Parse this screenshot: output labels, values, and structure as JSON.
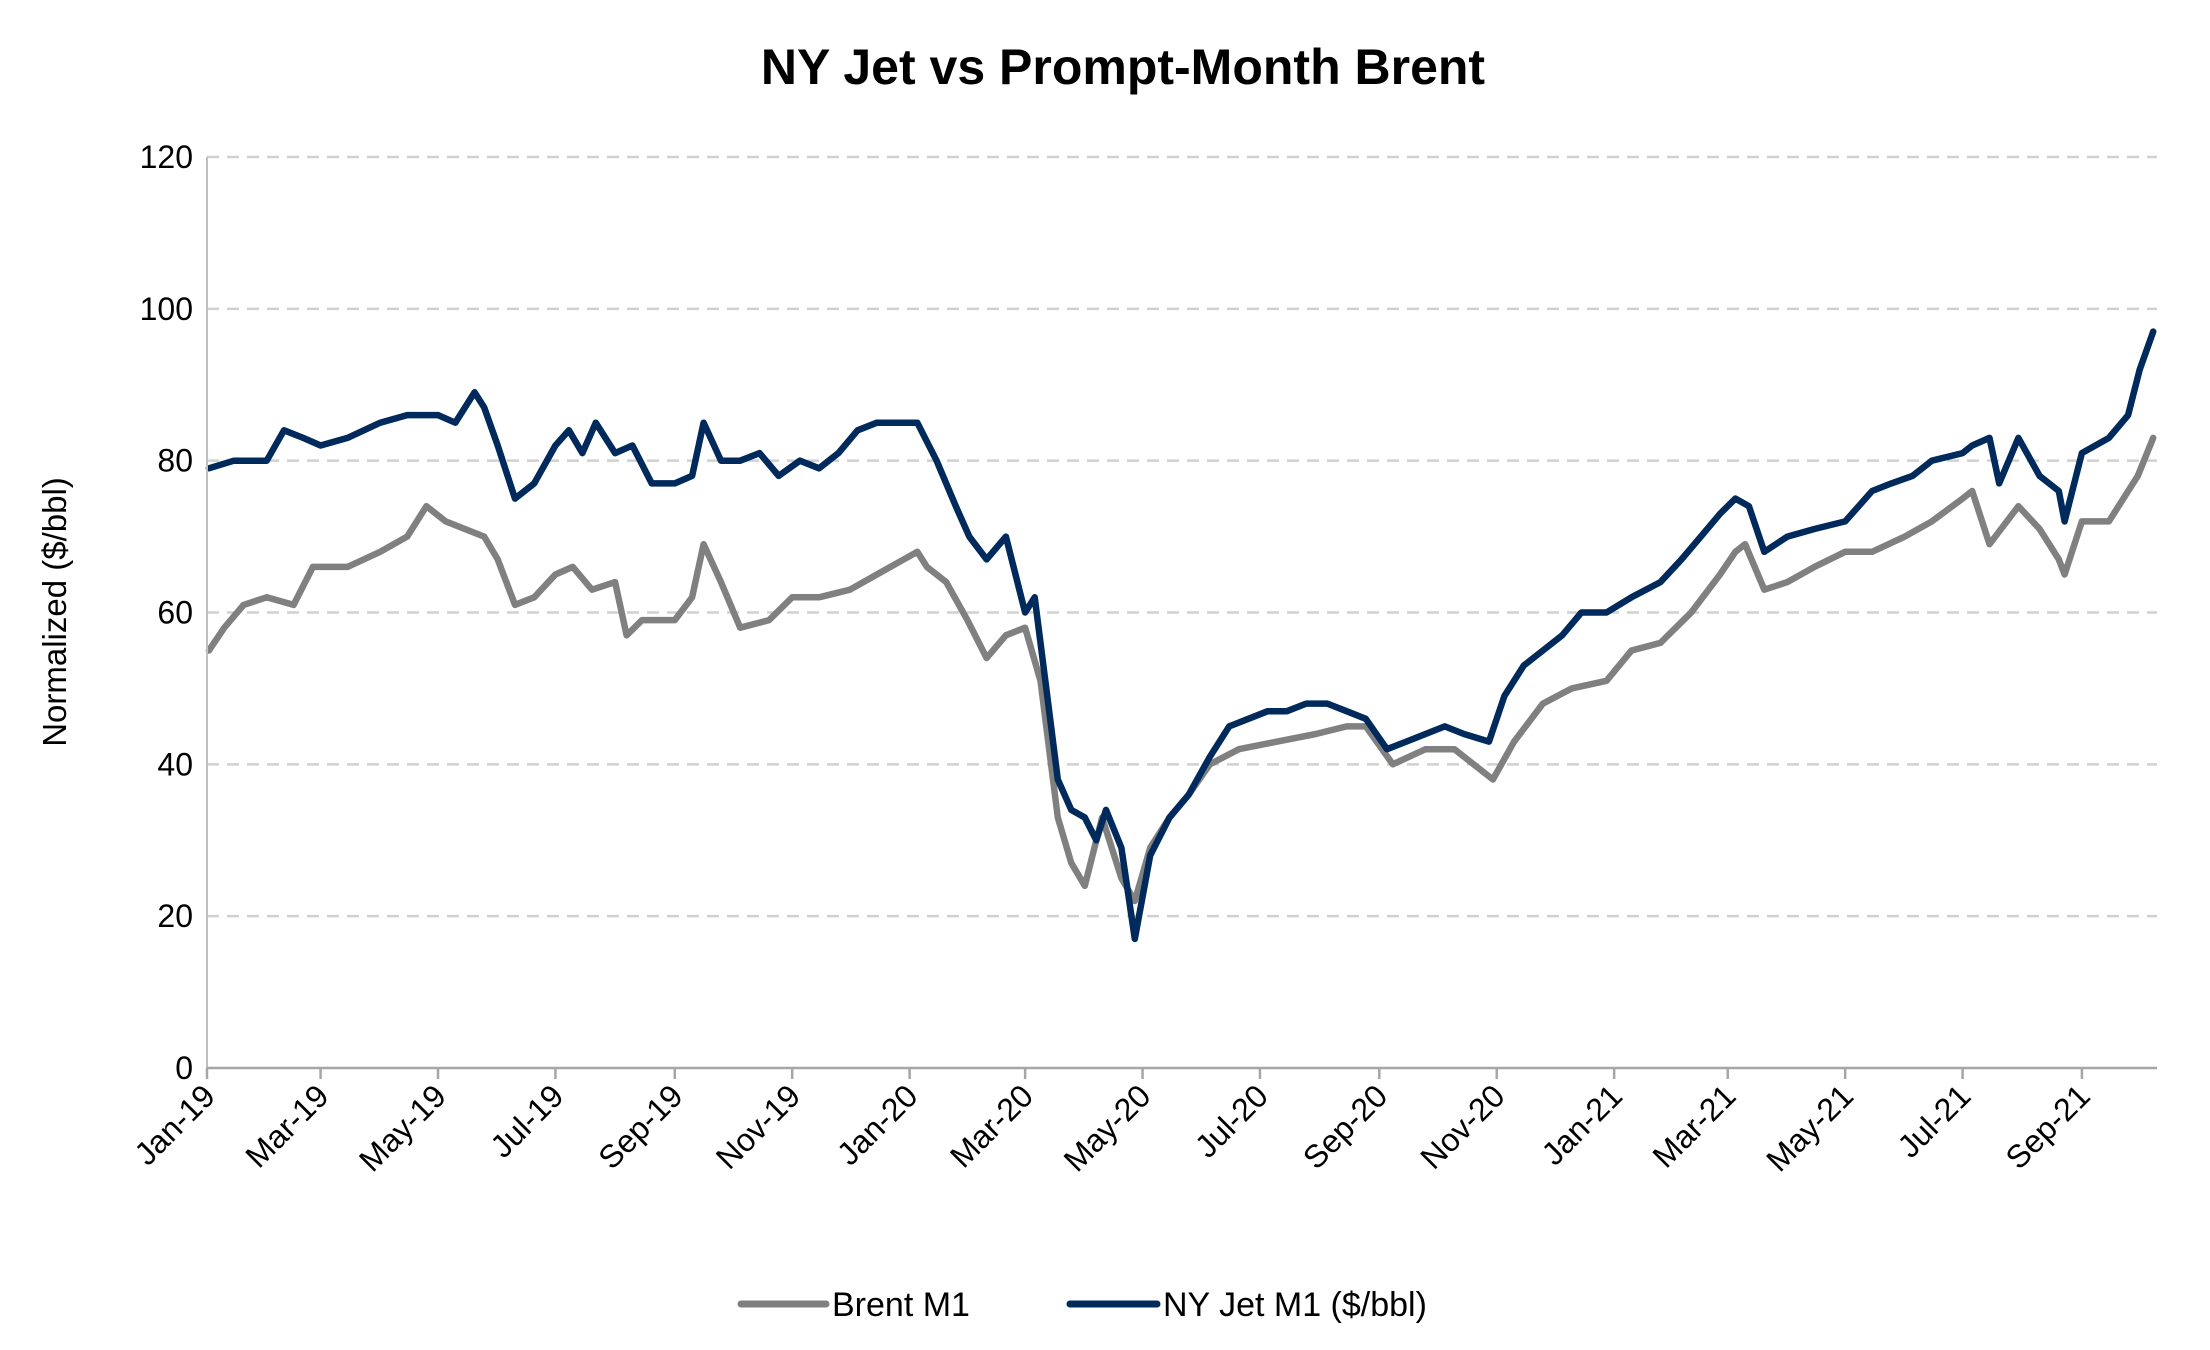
{
  "chart_data": {
    "type": "line",
    "title": "NY Jet vs Prompt-Month Brent",
    "xlabel": "",
    "ylabel": "Normalized ($/bbl)",
    "ylim": [
      0,
      120
    ],
    "yticks": [
      0,
      20,
      40,
      60,
      80,
      100,
      120
    ],
    "xlim": [
      "2019-01-01",
      "2021-10-10"
    ],
    "xticks": [
      {
        "date": "2019-01-01",
        "label": "Jan-19"
      },
      {
        "date": "2019-03-01",
        "label": "Mar-19"
      },
      {
        "date": "2019-05-01",
        "label": "May-19"
      },
      {
        "date": "2019-07-01",
        "label": "Jul-19"
      },
      {
        "date": "2019-09-01",
        "label": "Sep-19"
      },
      {
        "date": "2019-11-01",
        "label": "Nov-19"
      },
      {
        "date": "2020-01-01",
        "label": "Jan-20"
      },
      {
        "date": "2020-03-01",
        "label": "Mar-20"
      },
      {
        "date": "2020-05-01",
        "label": "May-20"
      },
      {
        "date": "2020-07-01",
        "label": "Jul-20"
      },
      {
        "date": "2020-09-01",
        "label": "Sep-20"
      },
      {
        "date": "2020-11-01",
        "label": "Nov-20"
      },
      {
        "date": "2021-01-01",
        "label": "Jan-21"
      },
      {
        "date": "2021-03-01",
        "label": "Mar-21"
      },
      {
        "date": "2021-05-01",
        "label": "May-21"
      },
      {
        "date": "2021-07-01",
        "label": "Jul-21"
      },
      {
        "date": "2021-09-01",
        "label": "Sep-21"
      }
    ],
    "grid": "horizontal dashed",
    "legend": "bottom",
    "series": [
      {
        "name": "Brent M1",
        "color": "#808080",
        "points": [
          [
            "2019-01-02",
            55
          ],
          [
            "2019-01-10",
            58
          ],
          [
            "2019-01-20",
            61
          ],
          [
            "2019-02-01",
            62
          ],
          [
            "2019-02-15",
            61
          ],
          [
            "2019-02-25",
            66
          ],
          [
            "2019-03-15",
            66
          ],
          [
            "2019-04-01",
            68
          ],
          [
            "2019-04-15",
            70
          ],
          [
            "2019-04-25",
            74
          ],
          [
            "2019-05-05",
            72
          ],
          [
            "2019-05-15",
            71
          ],
          [
            "2019-05-25",
            70
          ],
          [
            "2019-06-01",
            67
          ],
          [
            "2019-06-10",
            61
          ],
          [
            "2019-06-20",
            62
          ],
          [
            "2019-07-01",
            65
          ],
          [
            "2019-07-10",
            66
          ],
          [
            "2019-07-20",
            63
          ],
          [
            "2019-08-01",
            64
          ],
          [
            "2019-08-07",
            57
          ],
          [
            "2019-08-15",
            59
          ],
          [
            "2019-09-01",
            59
          ],
          [
            "2019-09-10",
            62
          ],
          [
            "2019-09-16",
            69
          ],
          [
            "2019-09-25",
            64
          ],
          [
            "2019-10-05",
            58
          ],
          [
            "2019-10-20",
            59
          ],
          [
            "2019-11-01",
            62
          ],
          [
            "2019-11-15",
            62
          ],
          [
            "2019-12-01",
            63
          ],
          [
            "2019-12-15",
            65
          ],
          [
            "2020-01-05",
            68
          ],
          [
            "2020-01-10",
            66
          ],
          [
            "2020-01-20",
            64
          ],
          [
            "2020-01-31",
            59
          ],
          [
            "2020-02-10",
            54
          ],
          [
            "2020-02-20",
            57
          ],
          [
            "2020-03-01",
            58
          ],
          [
            "2020-03-09",
            51
          ],
          [
            "2020-03-18",
            33
          ],
          [
            "2020-03-25",
            27
          ],
          [
            "2020-04-01",
            24
          ],
          [
            "2020-04-10",
            33
          ],
          [
            "2020-04-20",
            25
          ],
          [
            "2020-04-27",
            22
          ],
          [
            "2020-05-05",
            29
          ],
          [
            "2020-05-15",
            33
          ],
          [
            "2020-05-25",
            36
          ],
          [
            "2020-06-05",
            40
          ],
          [
            "2020-06-20",
            42
          ],
          [
            "2020-07-10",
            43
          ],
          [
            "2020-07-30",
            44
          ],
          [
            "2020-08-15",
            45
          ],
          [
            "2020-08-25",
            45
          ],
          [
            "2020-09-08",
            40
          ],
          [
            "2020-09-25",
            42
          ],
          [
            "2020-10-10",
            42
          ],
          [
            "2020-10-30",
            38
          ],
          [
            "2020-11-10",
            43
          ],
          [
            "2020-11-25",
            48
          ],
          [
            "2020-12-10",
            50
          ],
          [
            "2020-12-28",
            51
          ],
          [
            "2021-01-10",
            55
          ],
          [
            "2021-01-25",
            56
          ],
          [
            "2021-02-10",
            60
          ],
          [
            "2021-02-25",
            65
          ],
          [
            "2021-03-05",
            68
          ],
          [
            "2021-03-10",
            69
          ],
          [
            "2021-03-20",
            63
          ],
          [
            "2021-04-01",
            64
          ],
          [
            "2021-04-15",
            66
          ],
          [
            "2021-05-01",
            68
          ],
          [
            "2021-05-15",
            68
          ],
          [
            "2021-06-01",
            70
          ],
          [
            "2021-06-15",
            72
          ],
          [
            "2021-07-01",
            75
          ],
          [
            "2021-07-06",
            76
          ],
          [
            "2021-07-15",
            69
          ],
          [
            "2021-07-30",
            74
          ],
          [
            "2021-08-10",
            71
          ],
          [
            "2021-08-20",
            67
          ],
          [
            "2021-08-23",
            65
          ],
          [
            "2021-09-01",
            72
          ],
          [
            "2021-09-15",
            72
          ],
          [
            "2021-09-30",
            78
          ],
          [
            "2021-10-08",
            83
          ]
        ]
      },
      {
        "name": "NY Jet M1 ($/bbl)",
        "color": "#002a5c",
        "points": [
          [
            "2019-01-02",
            79
          ],
          [
            "2019-01-15",
            80
          ],
          [
            "2019-02-01",
            80
          ],
          [
            "2019-02-10",
            84
          ],
          [
            "2019-02-20",
            83
          ],
          [
            "2019-03-01",
            82
          ],
          [
            "2019-03-15",
            83
          ],
          [
            "2019-04-01",
            85
          ],
          [
            "2019-04-15",
            86
          ],
          [
            "2019-05-01",
            86
          ],
          [
            "2019-05-10",
            85
          ],
          [
            "2019-05-20",
            89
          ],
          [
            "2019-05-25",
            87
          ],
          [
            "2019-06-01",
            82
          ],
          [
            "2019-06-10",
            75
          ],
          [
            "2019-06-20",
            77
          ],
          [
            "2019-07-01",
            82
          ],
          [
            "2019-07-08",
            84
          ],
          [
            "2019-07-15",
            81
          ],
          [
            "2019-07-22",
            85
          ],
          [
            "2019-08-01",
            81
          ],
          [
            "2019-08-10",
            82
          ],
          [
            "2019-08-20",
            77
          ],
          [
            "2019-09-01",
            77
          ],
          [
            "2019-09-10",
            78
          ],
          [
            "2019-09-16",
            85
          ],
          [
            "2019-09-25",
            80
          ],
          [
            "2019-10-05",
            80
          ],
          [
            "2019-10-15",
            81
          ],
          [
            "2019-10-25",
            78
          ],
          [
            "2019-11-05",
            80
          ],
          [
            "2019-11-15",
            79
          ],
          [
            "2019-11-25",
            81
          ],
          [
            "2019-12-05",
            84
          ],
          [
            "2019-12-15",
            85
          ],
          [
            "2019-12-25",
            85
          ],
          [
            "2020-01-05",
            85
          ],
          [
            "2020-01-15",
            80
          ],
          [
            "2020-01-25",
            74
          ],
          [
            "2020-02-01",
            70
          ],
          [
            "2020-02-10",
            67
          ],
          [
            "2020-02-20",
            70
          ],
          [
            "2020-03-01",
            60
          ],
          [
            "2020-03-06",
            62
          ],
          [
            "2020-03-12",
            50
          ],
          [
            "2020-03-18",
            38
          ],
          [
            "2020-03-25",
            34
          ],
          [
            "2020-04-01",
            33
          ],
          [
            "2020-04-07",
            30
          ],
          [
            "2020-04-12",
            34
          ],
          [
            "2020-04-20",
            29
          ],
          [
            "2020-04-27",
            17
          ],
          [
            "2020-05-05",
            28
          ],
          [
            "2020-05-15",
            33
          ],
          [
            "2020-05-25",
            36
          ],
          [
            "2020-06-05",
            41
          ],
          [
            "2020-06-15",
            45
          ],
          [
            "2020-06-25",
            46
          ],
          [
            "2020-07-05",
            47
          ],
          [
            "2020-07-15",
            47
          ],
          [
            "2020-07-25",
            48
          ],
          [
            "2020-08-05",
            48
          ],
          [
            "2020-08-15",
            47
          ],
          [
            "2020-08-25",
            46
          ],
          [
            "2020-09-05",
            42
          ],
          [
            "2020-09-15",
            43
          ],
          [
            "2020-09-25",
            44
          ],
          [
            "2020-10-05",
            45
          ],
          [
            "2020-10-15",
            44
          ],
          [
            "2020-10-28",
            43
          ],
          [
            "2020-11-05",
            49
          ],
          [
            "2020-11-15",
            53
          ],
          [
            "2020-11-25",
            55
          ],
          [
            "2020-12-05",
            57
          ],
          [
            "2020-12-15",
            60
          ],
          [
            "2020-12-28",
            60
          ],
          [
            "2021-01-10",
            62
          ],
          [
            "2021-01-25",
            64
          ],
          [
            "2021-02-05",
            67
          ],
          [
            "2021-02-15",
            70
          ],
          [
            "2021-02-25",
            73
          ],
          [
            "2021-03-05",
            75
          ],
          [
            "2021-03-12",
            74
          ],
          [
            "2021-03-20",
            68
          ],
          [
            "2021-04-01",
            70
          ],
          [
            "2021-04-15",
            71
          ],
          [
            "2021-05-01",
            72
          ],
          [
            "2021-05-15",
            76
          ],
          [
            "2021-05-25",
            77
          ],
          [
            "2021-06-05",
            78
          ],
          [
            "2021-06-15",
            80
          ],
          [
            "2021-07-01",
            81
          ],
          [
            "2021-07-06",
            82
          ],
          [
            "2021-07-15",
            83
          ],
          [
            "2021-07-20",
            77
          ],
          [
            "2021-07-30",
            83
          ],
          [
            "2021-08-10",
            78
          ],
          [
            "2021-08-20",
            76
          ],
          [
            "2021-08-23",
            72
          ],
          [
            "2021-09-01",
            81
          ],
          [
            "2021-09-15",
            83
          ],
          [
            "2021-09-25",
            86
          ],
          [
            "2021-10-01",
            92
          ],
          [
            "2021-10-08",
            97
          ]
        ]
      }
    ]
  }
}
